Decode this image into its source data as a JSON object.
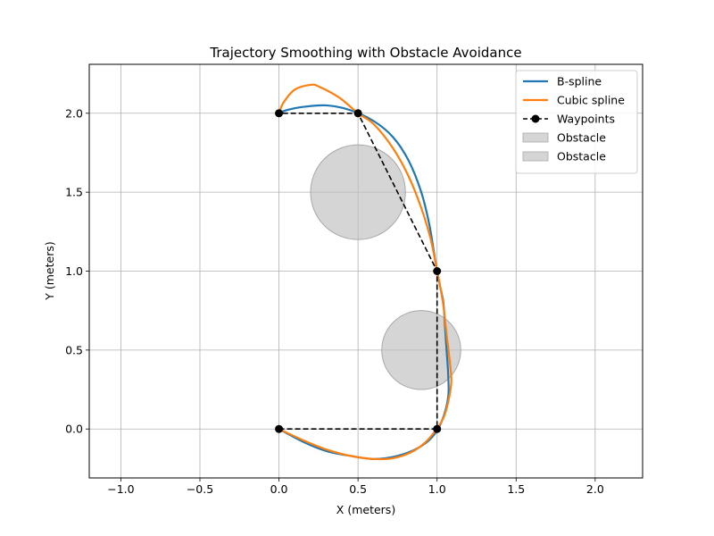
{
  "chart_data": {
    "type": "line",
    "title": "Trajectory Smoothing with Obstacle Avoidance",
    "xlabel": "X (meters)",
    "ylabel": "Y (meters)",
    "xlim": [
      -1.2,
      2.3
    ],
    "ylim": [
      -0.31,
      2.31
    ],
    "grid": true,
    "legend_position": "top-right",
    "xticks": [
      {
        "value": -1.0,
        "label": "−1.0"
      },
      {
        "value": -0.5,
        "label": "−0.5"
      },
      {
        "value": 0.0,
        "label": "0.0"
      },
      {
        "value": 0.5,
        "label": "0.5"
      },
      {
        "value": 1.0,
        "label": "1.0"
      },
      {
        "value": 1.5,
        "label": "1.5"
      },
      {
        "value": 2.0,
        "label": "2.0"
      }
    ],
    "yticks": [
      {
        "value": 0.0,
        "label": "0.0"
      },
      {
        "value": 0.5,
        "label": "0.5"
      },
      {
        "value": 1.0,
        "label": "1.0"
      },
      {
        "value": 1.5,
        "label": "1.5"
      },
      {
        "value": 2.0,
        "label": "2.0"
      }
    ],
    "obstacles": [
      {
        "name": "Obstacle",
        "center": [
          0.5,
          1.5
        ],
        "radius": 0.3,
        "color": "#bfbfbf"
      },
      {
        "name": "Obstacle",
        "center": [
          0.9,
          0.5
        ],
        "radius": 0.25,
        "color": "#bfbfbf"
      }
    ],
    "series": [
      {
        "name": "B-spline",
        "color": "#1f77b4",
        "style": "solid",
        "points": [
          [
            0.0,
            0.0
          ],
          [
            0.15,
            -0.08
          ],
          [
            0.3,
            -0.14
          ],
          [
            0.45,
            -0.17
          ],
          [
            0.6,
            -0.19
          ],
          [
            0.75,
            -0.17
          ],
          [
            0.88,
            -0.12
          ],
          [
            0.97,
            -0.05
          ],
          [
            1.03,
            0.05
          ],
          [
            1.07,
            0.2
          ],
          [
            1.07,
            0.35
          ],
          [
            1.06,
            0.5
          ],
          [
            1.05,
            0.65
          ],
          [
            1.04,
            0.8
          ],
          [
            1.02,
            0.9
          ],
          [
            1.0,
            1.0
          ],
          [
            0.98,
            1.12
          ],
          [
            0.95,
            1.3
          ],
          [
            0.9,
            1.5
          ],
          [
            0.82,
            1.7
          ],
          [
            0.72,
            1.85
          ],
          [
            0.6,
            1.95
          ],
          [
            0.45,
            2.02
          ],
          [
            0.3,
            2.05
          ],
          [
            0.15,
            2.04
          ],
          [
            0.05,
            2.02
          ],
          [
            0.0,
            2.0
          ]
        ]
      },
      {
        "name": "Cubic spline",
        "color": "#ff7f0e",
        "style": "solid",
        "points": [
          [
            0.0,
            0.0
          ],
          [
            0.15,
            -0.07
          ],
          [
            0.3,
            -0.13
          ],
          [
            0.45,
            -0.17
          ],
          [
            0.6,
            -0.19
          ],
          [
            0.72,
            -0.185
          ],
          [
            0.83,
            -0.15
          ],
          [
            0.92,
            -0.09
          ],
          [
            0.99,
            -0.01
          ],
          [
            1.04,
            0.07
          ],
          [
            1.07,
            0.17
          ],
          [
            1.09,
            0.3
          ],
          [
            1.08,
            0.43
          ],
          [
            1.06,
            0.6
          ],
          [
            1.04,
            0.78
          ],
          [
            1.02,
            0.9
          ],
          [
            1.0,
            1.0
          ],
          [
            0.96,
            1.2
          ],
          [
            0.9,
            1.4
          ],
          [
            0.82,
            1.6
          ],
          [
            0.72,
            1.78
          ],
          [
            0.6,
            1.93
          ],
          [
            0.5,
            2.0
          ],
          [
            0.38,
            2.1
          ],
          [
            0.25,
            2.17
          ],
          [
            0.2,
            2.18
          ],
          [
            0.1,
            2.15
          ],
          [
            0.03,
            2.07
          ],
          [
            0.0,
            2.0
          ]
        ]
      },
      {
        "name": "Waypoints",
        "color": "#000000",
        "style": "dashed",
        "marker": "circle",
        "points": [
          [
            0.0,
            0.0
          ],
          [
            1.0,
            0.0
          ],
          [
            1.0,
            1.0
          ],
          [
            0.5,
            2.0
          ],
          [
            0.0,
            2.0
          ]
        ]
      }
    ],
    "legend": [
      {
        "label": "B-spline",
        "kind": "line",
        "color": "#1f77b4"
      },
      {
        "label": "Cubic spline",
        "kind": "line",
        "color": "#ff7f0e"
      },
      {
        "label": "Waypoints",
        "kind": "dashed-marker",
        "color": "#000000"
      },
      {
        "label": "Obstacle",
        "kind": "patch",
        "color": "#bfbfbf"
      },
      {
        "label": "Obstacle",
        "kind": "patch",
        "color": "#bfbfbf"
      }
    ]
  }
}
